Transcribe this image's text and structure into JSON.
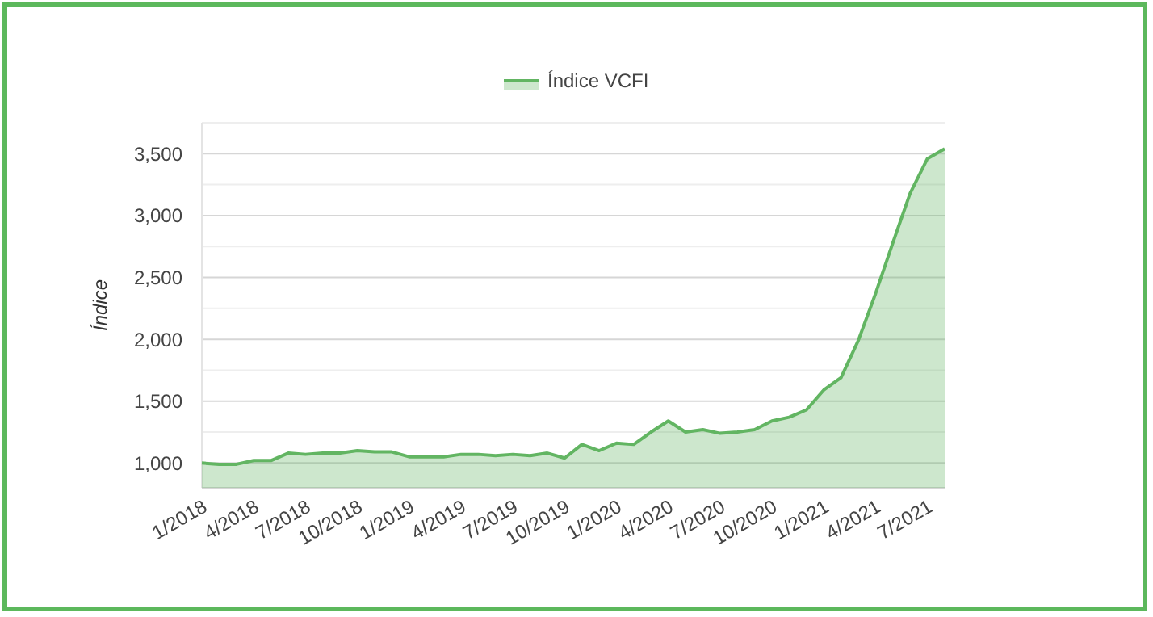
{
  "chart_data": {
    "type": "area",
    "ylabel": "Índice",
    "legend": "top",
    "categories": [
      "1/2018",
      null,
      null,
      "4/2018",
      null,
      null,
      "7/2018",
      null,
      null,
      "10/2018",
      null,
      null,
      "1/2019",
      null,
      null,
      "4/2019",
      null,
      null,
      "7/2019",
      null,
      null,
      "10/2019",
      null,
      null,
      "1/2020",
      null,
      null,
      "4/2020",
      null,
      null,
      "7/2020",
      null,
      null,
      "10/2020",
      null,
      null,
      "1/2021",
      null,
      null,
      "4/2021",
      null,
      null,
      "7/2021",
      null
    ],
    "series": [
      {
        "name": "Índice VCFI",
        "color": "#62b562",
        "values": [
          1000,
          990,
          990,
          1020,
          1020,
          1080,
          1070,
          1080,
          1080,
          1100,
          1090,
          1090,
          1050,
          1050,
          1050,
          1070,
          1070,
          1060,
          1070,
          1060,
          1080,
          1040,
          1150,
          1100,
          1160,
          1150,
          1250,
          1340,
          1250,
          1270,
          1240,
          1250,
          1270,
          1340,
          1370,
          1430,
          1590,
          1690,
          1990,
          2370,
          2780,
          3180,
          3460,
          3540
        ]
      }
    ],
    "ylim": [
      800,
      3750
    ],
    "yticks": [
      {
        "value": 1000,
        "label": "1,000"
      },
      {
        "value": 1250,
        "label": null
      },
      {
        "value": 1500,
        "label": "1,500"
      },
      {
        "value": 1750,
        "label": null
      },
      {
        "value": 2000,
        "label": "2,000"
      },
      {
        "value": 2250,
        "label": null
      },
      {
        "value": 2500,
        "label": "2,500"
      },
      {
        "value": 2750,
        "label": null
      },
      {
        "value": 3000,
        "label": "3,000"
      },
      {
        "value": 3250,
        "label": null
      },
      {
        "value": 3500,
        "label": "3,500"
      },
      {
        "value": 3750,
        "label": null
      }
    ],
    "grid": "y"
  }
}
